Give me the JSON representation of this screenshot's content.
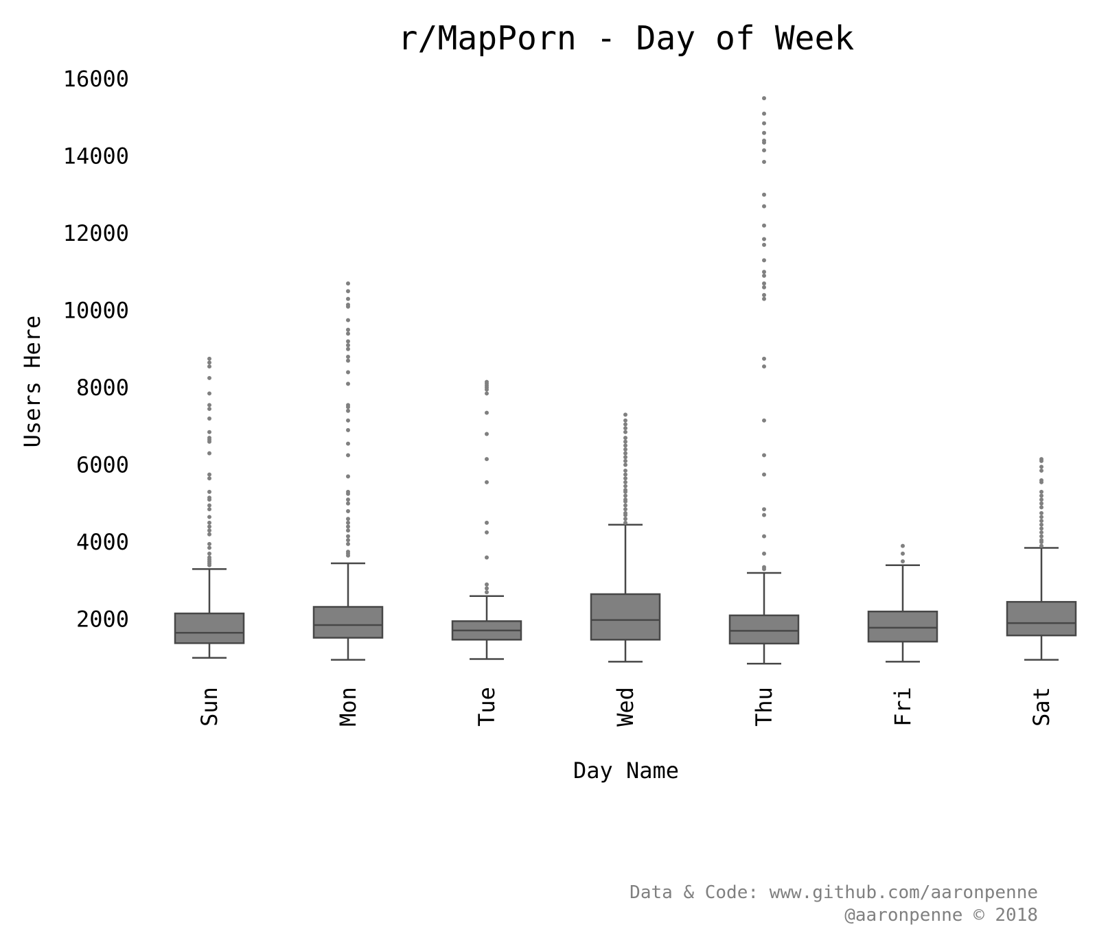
{
  "chart_data": {
    "type": "boxplot",
    "title": "r/MapPorn - Day of Week",
    "xlabel": "Day Name",
    "ylabel": "Users Here",
    "ylim": [
      0,
      16000
    ],
    "yticks": [
      2000,
      4000,
      6000,
      8000,
      10000,
      12000,
      14000,
      16000
    ],
    "grid": false,
    "categories": [
      "Sun",
      "Mon",
      "Tue",
      "Wed",
      "Thu",
      "Fri",
      "Sat"
    ],
    "boxes": [
      {
        "label": "Sun",
        "whisker_low": 1000,
        "q1": 1380,
        "median": 1650,
        "q3": 2150,
        "whisker_high": 3300,
        "outliers": [
          3400,
          3450,
          3500,
          3550,
          3600,
          3700,
          3850,
          3950,
          4200,
          4300,
          4400,
          4500,
          4650,
          4850,
          4950,
          5100,
          5150,
          5300,
          5650,
          5750,
          6300,
          6600,
          6650,
          6700,
          6850,
          7200,
          7450,
          7550,
          7850,
          8250,
          8550,
          8650,
          8750
        ]
      },
      {
        "label": "Mon",
        "whisker_low": 950,
        "q1": 1520,
        "median": 1850,
        "q3": 2320,
        "whisker_high": 3450,
        "outliers": [
          3650,
          3700,
          3750,
          3950,
          4050,
          4150,
          4300,
          4400,
          4500,
          4600,
          4800,
          5000,
          5100,
          5250,
          5300,
          5700,
          6250,
          6550,
          6900,
          7150,
          7400,
          7500,
          7550,
          8100,
          8400,
          8700,
          8800,
          9000,
          9100,
          9200,
          9400,
          9500,
          9750,
          10100,
          10150,
          10300,
          10500,
          10700
        ]
      },
      {
        "label": "Tue",
        "whisker_low": 970,
        "q1": 1470,
        "median": 1710,
        "q3": 1950,
        "whisker_high": 2600,
        "outliers": [
          2700,
          2800,
          2900,
          3600,
          4250,
          4500,
          5550,
          6150,
          6800,
          7350,
          7850,
          7950,
          8000,
          8050,
          8100,
          8150
        ]
      },
      {
        "label": "Wed",
        "whisker_low": 900,
        "q1": 1470,
        "median": 1980,
        "q3": 2650,
        "whisker_high": 4450,
        "outliers": [
          4500,
          4600,
          4700,
          4750,
          4850,
          4950,
          5050,
          5100,
          5200,
          5300,
          5350,
          5450,
          5550,
          5650,
          5750,
          5850,
          6000,
          6100,
          6200,
          6300,
          6400,
          6500,
          6600,
          6700,
          6850,
          6950,
          7050,
          7150,
          7300
        ]
      },
      {
        "label": "Thu",
        "whisker_low": 850,
        "q1": 1370,
        "median": 1700,
        "q3": 2100,
        "whisker_high": 3200,
        "outliers": [
          3300,
          3350,
          3700,
          4150,
          4700,
          4850,
          5750,
          6250,
          7150,
          8550,
          8750,
          10300,
          10400,
          10600,
          10700,
          10900,
          11000,
          11300,
          11700,
          11850,
          12200,
          12700,
          13000,
          13850,
          14150,
          14350,
          14400,
          14600,
          14850,
          15100,
          15500
        ]
      },
      {
        "label": "Fri",
        "whisker_low": 900,
        "q1": 1420,
        "median": 1780,
        "q3": 2200,
        "whisker_high": 3400,
        "outliers": [
          3500,
          3700,
          3900
        ]
      },
      {
        "label": "Sat",
        "whisker_low": 950,
        "q1": 1580,
        "median": 1900,
        "q3": 2450,
        "whisker_high": 3850,
        "outliers": [
          3900,
          4000,
          4050,
          4150,
          4250,
          4350,
          4450,
          4550,
          4650,
          4750,
          4900,
          5000,
          5100,
          5200,
          5300,
          5550,
          5600,
          5850,
          5950,
          6100,
          6150
        ]
      }
    ],
    "colors": {
      "box_fill": "#808080",
      "box_edge": "#474747",
      "outlier": "#808080"
    }
  },
  "credit": {
    "line1": "Data & Code: www.github.com/aaronpenne",
    "line2": "@aaronpenne © 2018"
  }
}
